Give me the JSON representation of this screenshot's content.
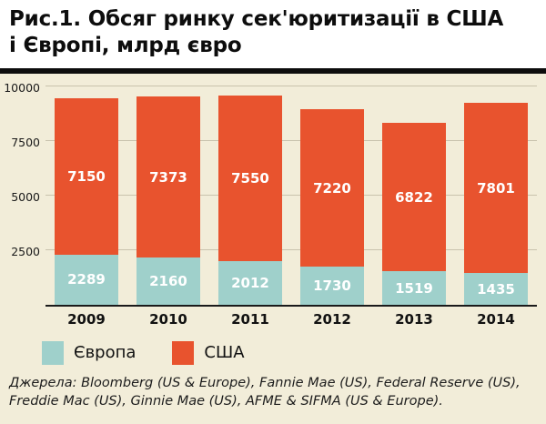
{
  "title": {
    "lines": [
      "Рис.1. Обсяг ринку сек'юритизації в США",
      "і Європі, млрд євро"
    ]
  },
  "chart_data": {
    "type": "bar",
    "stacked": true,
    "title": "Рис.1. Обсяг ринку сек'юритизації в США і Європі, млрд євро",
    "categories": [
      "2009",
      "2010",
      "2011",
      "2012",
      "2013",
      "2014"
    ],
    "series": [
      {
        "name": "Європа",
        "color": "#9fd0cb",
        "values": [
          2289,
          2160,
          2012,
          1730,
          1519,
          1435
        ]
      },
      {
        "name": "США",
        "color": "#e8532e",
        "values": [
          7150,
          7373,
          7550,
          7220,
          6822,
          7801
        ]
      }
    ],
    "xlabel": "",
    "ylabel": "",
    "ylim": [
      0,
      10000
    ],
    "yticks": [
      2500,
      5000,
      7500,
      10000
    ],
    "grid": true,
    "legend_position": "bottom"
  },
  "colors": {
    "background": "#f2edd9",
    "header_background": "#ffffff",
    "divider": "#0d0d0d",
    "bar_europe": "#9fd0cb",
    "bar_usa": "#e8532e",
    "gridline": "#c9c3ad"
  },
  "source": "Джерела: Bloomberg (US & Europe), Fannie Mae (US), Federal Reserve (US), Freddie Mac (US), Ginnie Mae (US),  AFME & SIFMA (US & Europe)."
}
